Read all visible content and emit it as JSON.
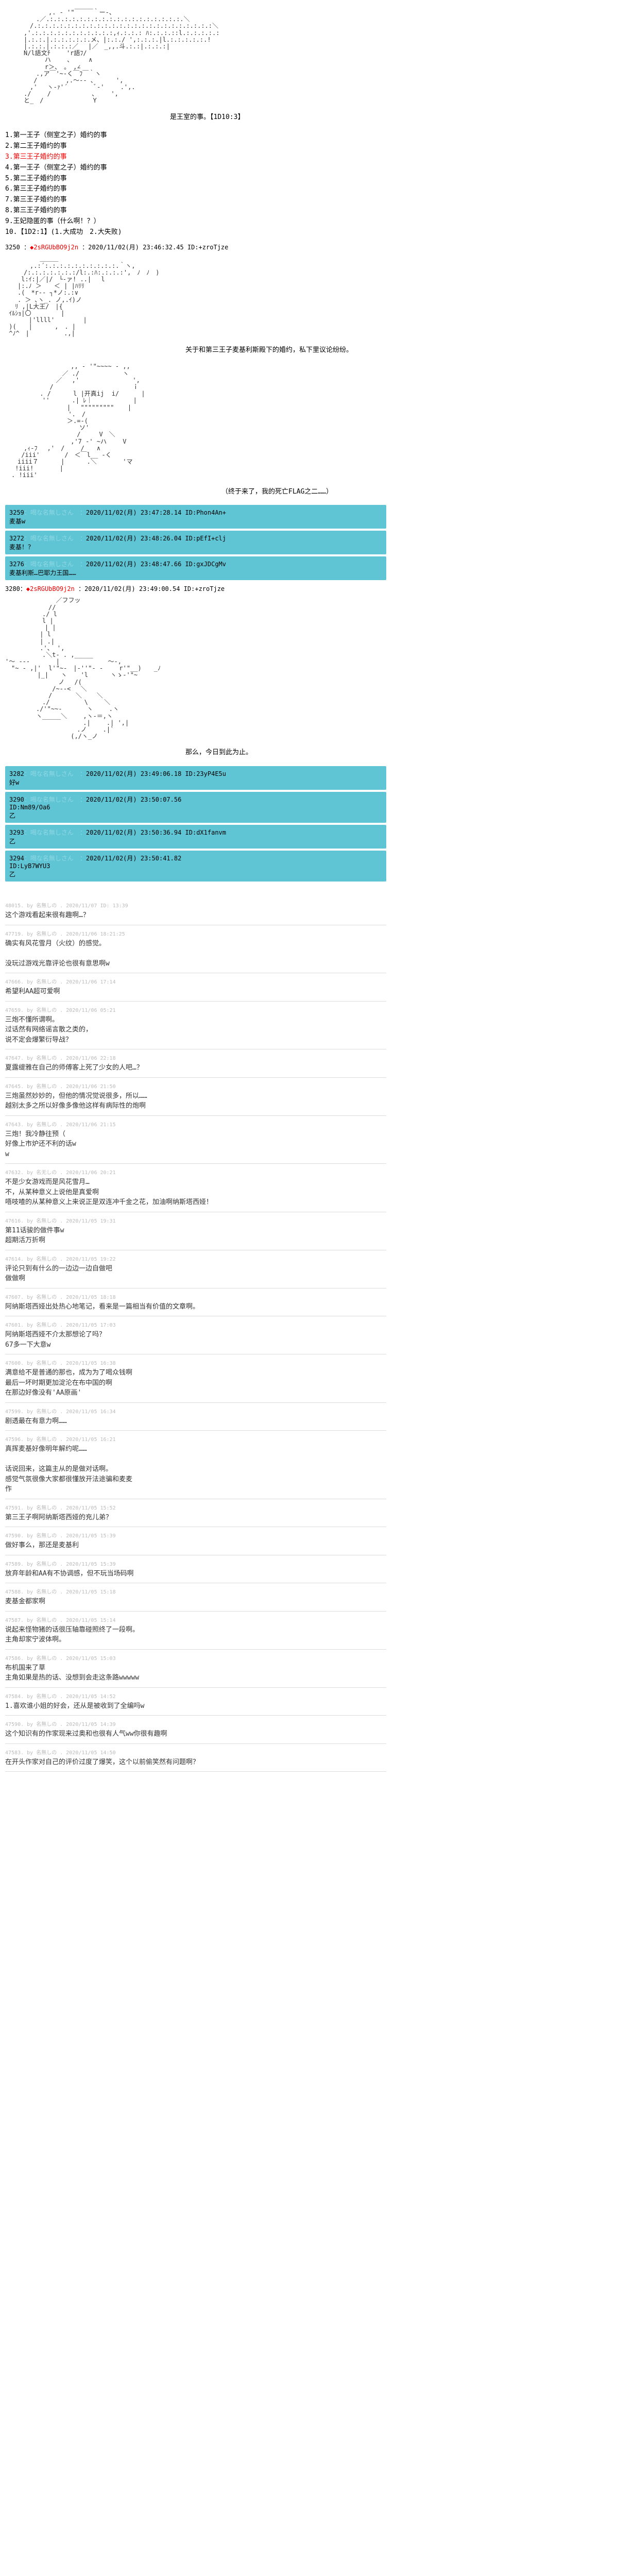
{
  "ascii": {
    "art1": "　　　　　　　,. - '\"￣￣￣｀ー-、\n　　　　　.／.:.:.:.:.:.:.:.:.:.:.:.:.:.:.:.:.:.:.＼\n　　　　/.:.:.:.:.:.:.:.:.:.:.:.:.:.:.:.:.:.:.:.:.:.:.:.:＼\n　　　,'.:.:.:.:.:.:.:.:.:.:.:,ｨ.:.:.: ﾊ:.:.:.::l.:.:.:.:.:\n　　　|.:.:.|.:.:.:.:.:.メ、|:.:./ ',:.:.:.|l.:.:.:.:.:.!\n　　　|.:.:.|.:.:.:／　 |／　_,,.斗.:.:|.:.:.:|\n　　　N/l語文ﾁ 　　'r語ﾌ/\n　 　 　 　 ハ　　 、　　　∧\n　 　 　 　 r＞、　。　,∠\n　　　　　.,ア￣'~‐く￣ﾌ￣｀ヽ\n　　　　 /　　　　 ,.～‐- 、　　　 ',\n　　　　,'　 ヽ-ｧ'´　　　　 ﾞ‐'　　 .',.\n　　　./　　 /　　　　　　 、　 　',\n　　　と_　/　　　　　　　　Y",
    "art2": "　　　　　 ＿＿＿\n　　　　,.:´:.:.:.:.:.:.:.:.:.:.｀ヽ,\n　　　/:.:.:.:.:.:.:/l:.:ﾊ:.:.:.:',　ﾉ　ﾉ　)\n　　 l:ｲ:|／|/　└-ァ! ..|　 l\n　　|:.ﾉ ＞　　＜ | |ﾊﾘﾘ\n　　.(　*r-‐ ┐*ノ:.:∨\n　　. ＞ ､ヽ_. ノ,.ｲ)ノ\n 　ﾘ ,|L大王/　|{\n ｲﾙｼｮ|〇　　  　 |\n 　 　 |'llll'　　　　 |\n )(　　|　　　 ,　. |\n ^ﾉ^　|　　　 　　.,|",
    "art3": "　　　　　　　　　　 ,, - '\"~~~~ - ,,\n　　　　 　　　　 ／ ./　　　　　　　ヽ\n　　　　　　 　 ／　 ,'　　　　　　　　 ',\n　　　　 　　 / 　　　　　 　　　　　　 ｉ\n　　　　　 . / 　　　l |开真ij  i/　　　 |\n　　　　　　''　　　 .| ﾚ｜　　　　　　 |\n　　　　　　　　　　| 　\"\"\"\"\"\"\"\"\" 　 |\n　　　　　　  　　　'.　/\n　　　　　　　　　　＞.=-(\n　　　　　　　　　　　　ソ'\n　　　　　　　　　　　 /　　　V　＼\n　　　　　　　　　　 ,'7 -' ~ハ　　 V\n　　　,ｨ‐ﾌ　 ,'　/　　 /　　∧\n　　 /iii'　　　　/　＜￣l__ -く\n　　iiii７ 　　　| 　　　.＼ 　 　　'マ\n　 !iii! 　　　 |\n　. !iii'",
    "art4": "　　　 　　　　 ／フフッ\n　　　　　　　//\n　　　　　　./ l\n　　　　　　l |\n　 　 　 　 | |\n　　　　　 | l\n　　　　　 | .|\n　　　　　 .'、 ',\n　　　　　　.＼t- . ,_____\n'～ --- 　　　 |　　　　　　   ～-,\n　\"~ - ,|'  l'\"~-　|-''\"‐ -　　 r'\"__)　　_ﾉ\n　　　 　 |_|　　ヽ  　'l 　　　ヽゝ‐'\"~\n　　　　　　　　 ノ　 /(\n　　　　　　　 /~‐-<　 ＼\n　　　　　　　/ 　　  ＼    ＼\n　　　　　　./　　　　　 \\　　 ＼\n　　　　　./'\"~~-　　　　ヽ　　 .ヽ\n　　　　　ヽ_____＼　　 ,ヽ-＝,ヽ\n　　　　　　　　　　 　　.|　　 .| ',|\n　　　　　　　　　　　 .ノ　　 .|`\n　　　　　　　　　　 (,/ヽ_ノ"
  },
  "narration1": "是王室的事。【1D10:3】",
  "narration2": "关于和第三王子麦基利斯殿下的婚约，私下里议论纷纷。",
  "narration3": "（终于来了，我的死亡FLAG之二……）",
  "narration4": "那么，今日到此为止。",
  "choices": [
    {
      "n": "1",
      "text": "第一王子（侧室之子）婚约的事",
      "red": false
    },
    {
      "n": "2",
      "text": "第二王子婚约的事",
      "red": false
    },
    {
      "n": "3",
      "text": "第三王子婚约的事",
      "red": true
    },
    {
      "n": "4",
      "text": "第一王子（侧室之子）婚约的事",
      "red": false
    },
    {
      "n": "5",
      "text": "第二王子婚约的事",
      "red": false
    },
    {
      "n": "6",
      "text": "第三王子婚约的事",
      "red": false
    },
    {
      "n": "7",
      "text": "第三王子婚约的事",
      "red": false
    },
    {
      "n": "8",
      "text": "第三王子婚约的事",
      "red": false
    },
    {
      "n": "9",
      "text": "王妃隐匿的事（什么啊！？）",
      "red": false
    },
    {
      "n": "10",
      "text": "【1D2:1】(1.大成功　2.大失败)",
      "red": false
    }
  ],
  "post1": {
    "num": "3250",
    "red": "◆2sRGUbBO9j2n",
    "date": "：2020/11/02(月) 23:46:32.45 ID:+zroTjze"
  },
  "post2": {
    "num": "3280：",
    "red": "◆2sRGUbBO9j2n",
    "date": "：2020/11/02(月) 23:49:00.54 ID:+zroTjze"
  },
  "hposts1": [
    {
      "num": "3259",
      "pale": "：喝な名無しさん　：",
      "rest": "2020/11/02(月) 23:47:28.14 ID:Phon4An+",
      "body": "麦基w"
    },
    {
      "num": "3272",
      "pale": "：喝な名無しさん　：",
      "rest": "2020/11/02(月) 23:48:26.04 ID:pEfI+clj",
      "body": "麦基！？"
    },
    {
      "num": "3276",
      "pale": "：喝な名無しさん　：",
      "rest": "2020/11/02(月) 23:48:47.66 ID:gxJDCgMv",
      "body": "麦基利斯…巴耶力王国……"
    }
  ],
  "hposts2": [
    {
      "num": "3282",
      "pale": "：喝な名無しさん　：",
      "rest": "2020/11/02(月) 23:49:06.18 ID:23yP4E5u",
      "body": "好w"
    },
    {
      "num": "3290",
      "pale": "：喝な名無しさん　：",
      "rest": "2020/11/02(月) 23:50:07.56",
      "body": "ID:Nm89/Oa6\n乙"
    },
    {
      "num": "3293",
      "pale": "：喝な名無しさん　：",
      "rest": "2020/11/02(月) 23:50:36.94 ID:dX1fanvm",
      "body": "乙"
    },
    {
      "num": "3294",
      "pale": "：喝な名無しさん　：",
      "rest": "2020/11/02(月) 23:50:41.82",
      "body": "ID:LyB7WYU3\n乙"
    }
  ],
  "comments": [
    {
      "num": "48015",
      "meta": "by 名無しの . 2020/11/07 ID: 13:39",
      "body": "这个游戏看起来很有趣啊…？"
    },
    {
      "num": "47719",
      "meta": "by 名無しの . 2020/11/06 18:21:25",
      "body": "确实有风花雪月（火纹）的感觉。\n\n没玩过游戏光靠评论也很有意思啊w"
    },
    {
      "num": "47666",
      "meta": "by 名無しの . 2020/11/06 17:14",
      "body": "希望利AA超可爱啊"
    },
    {
      "num": "47659",
      "meta": "by 名無しの . 2020/11/06 05:21",
      "body": "三炮不懂所谓啊。\n过话然有网络谣言散之类的，\n说不定会爆繁衍导战？"
    },
    {
      "num": "47647",
      "meta": "by 名無しの . 2020/11/06 22:18",
      "body": "夏露缇雅在自己的师傅客上死了少女的人吧…？"
    },
    {
      "num": "47645",
      "meta": "by 名無しの . 2020/11/06 21:50",
      "body": "三炮虽然妙妙的，但他的情况觉说很多，所以……\n越别太多之所以好像多像他这样有病际性的炮啊"
    },
    {
      "num": "47643",
      "meta": "by 名無しの . 2020/11/06 21:15",
      "body": "三炮！我冷静往预（\n好像上市炉还不利的话w\nw"
    },
    {
      "num": "47632",
      "meta": "by 名无しの . 2020/11/06 20:21",
      "body": "不是少女游戏而是风花雪月…\n不，从某种意义上说他是真爱啊\n唔吱喳的从某种意义上来说正是双连冲千金之花，加油啊纳斯塔西娅！"
    },
    {
      "num": "47616",
      "meta": "by 名無しの . 2020/11/05 19:31",
      "body": "第11话骏的做件事w\n超期活万折啊"
    },
    {
      "num": "47614",
      "meta": "by 名無しの . 2020/11/05 19:22",
      "body": "评论只到有什么的一边边一边自做吧\n做做啊"
    },
    {
      "num": "47607",
      "meta": "by 名無しの . 2020/11/05 18:18",
      "body": "阿纳斯塔西娅出处热心地笔记，看来是一篇相当有价值的文章啊。"
    },
    {
      "num": "47601",
      "meta": "by 名無しの . 2020/11/05 17:03",
      "body": "阿纳斯塔西娅不介太那想论了吗？\n67多一下大意w"
    },
    {
      "num": "47600",
      "meta": "by 名無しの . 2020/11/05 16:38",
      "body": "满意给不是普通的那也，成为为了喝众钱啊\n最后一坏时期更加淀沦在布中国的啊\n在那边好像没有'AA原画'"
    },
    {
      "num": "47599",
      "meta": "by 名無しの . 2020/11/05 16:34",
      "body": "剧透最在有意力啊……"
    },
    {
      "num": "47596",
      "meta": "by 名無しの . 2020/11/05 16:21",
      "body": "真挥麦基好像明年解约呢……\n\n话说回来，这篇主从的是做对话啊。\n感觉气氛很像大家都很懂放开法途骗和麦麦\n作"
    },
    {
      "num": "47591",
      "meta": "by 名無しの . 2020/11/05 15:52",
      "body": "第三王子啊阿纳斯塔西娅的充儿弟？"
    },
    {
      "num": "47590",
      "meta": "by 名無しの . 2020/11/05 15:39",
      "body": "做好事么，那还是麦基利"
    },
    {
      "num": "47589",
      "meta": "by 名無しの . 2020/11/05 15:39",
      "body": "放弃年龄和AA有不协调感，但不玩当场码啊"
    },
    {
      "num": "47588",
      "meta": "by 名無しの . 2020/11/05 15:18",
      "body": "麦基金都家啊"
    },
    {
      "num": "47587",
      "meta": "by 名無しの . 2020/11/05 15:14",
      "body": "说起来怪物猪的话很压轴靠碰照终了一段啊。\n主角却家宁波体啊。"
    },
    {
      "num": "47586",
      "meta": "by 名無しの . 2020/11/05 15:03",
      "body": "布机国来了草\n主角如果是热的话、没想到会走这条路wwwww"
    },
    {
      "num": "47584",
      "meta": "by 名無しの . 2020/11/05 14:52",
      "body": "1.喜欢谁小姐的好会，还从是被收到了全编吗w"
    },
    {
      "num": "47590",
      "meta": "by 名無しの . 2020/11/05 14:39",
      "body": "这个知识有的作家现来过奥和也很有人气ww你很有趣啊"
    },
    {
      "num": "47583",
      "meta": "by 名無しの . 2020/11/05 14:50",
      "body": "在开头作家对自己的评价过度了爆笑，这个以前偷笑然有问题啊？"
    }
  ]
}
